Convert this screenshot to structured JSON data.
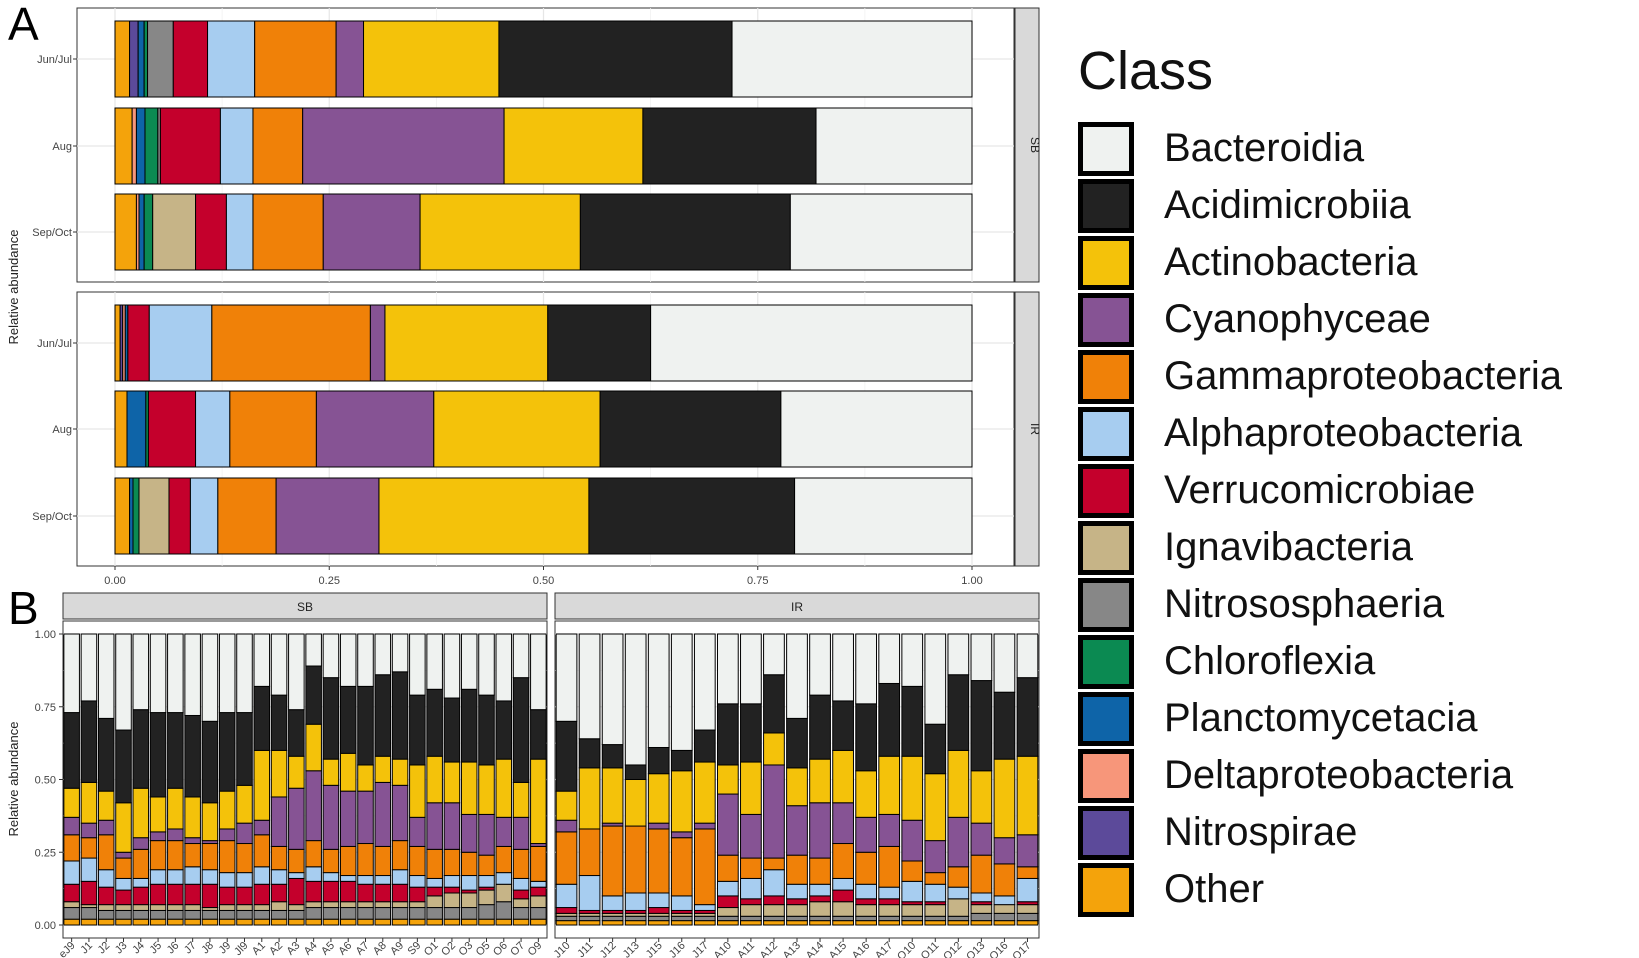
{
  "panel_letters": [
    "A",
    "B"
  ],
  "legend": {
    "title": "Class"
  },
  "classes": [
    {
      "name": "Bacteroidia",
      "color": "#eff2f0"
    },
    {
      "name": "Acidimicrobiia",
      "color": "#222222"
    },
    {
      "name": "Actinobacteria",
      "color": "#f4c20a"
    },
    {
      "name": "Cyanophyceae",
      "color": "#865394"
    },
    {
      "name": "Gammaproteobacteria",
      "color": "#f08108"
    },
    {
      "name": "Alphaproteobacteria",
      "color": "#a7cdf0"
    },
    {
      "name": "Verrucomicrobiae",
      "color": "#c4002c"
    },
    {
      "name": "Ignavibacteria",
      "color": "#c6b487"
    },
    {
      "name": "Nitrososphaeria",
      "color": "#878787"
    },
    {
      "name": "Chloroflexia",
      "color": "#0b8a52"
    },
    {
      "name": "Planctomycetacia",
      "color": "#0e64a8"
    },
    {
      "name": "Deltaproteobacteria",
      "color": "#f7967a"
    },
    {
      "name": "Nitrospirae",
      "color": "#5c4a9a"
    },
    {
      "name": "Other",
      "color": "#f4a30b"
    }
  ],
  "chart_data": [
    {
      "type": "bar",
      "orientation": "horizontal",
      "stacked": true,
      "ylabel": "Relative abundance",
      "xlim": [
        0,
        1
      ],
      "x_ticks": [
        "0.00",
        "0.25",
        "0.50",
        "0.75",
        "1.00"
      ],
      "stack_order": [
        "Other",
        "Nitrospirae",
        "Deltaproteobacteria",
        "Planctomycetacia",
        "Chloroflexia",
        "Nitrososphaeria",
        "Ignavibacteria",
        "Verrucomicrobiae",
        "Alphaproteobacteria",
        "Gammaproteobacteria",
        "Cyanophyceae",
        "Actinobacteria",
        "Acidimicrobiia",
        "Bacteroidia"
      ],
      "facets": [
        {
          "strip": "SB",
          "categories": [
            "Jun/Jul",
            "Aug",
            "Sep/Oct"
          ],
          "segments": [
            [
              0.017,
              0.01,
              0.0,
              0.007,
              0.004,
              0.03,
              0.0,
              0.04,
              0.055,
              0.095,
              0.032,
              0.158,
              0.272,
              0.28
            ],
            [
              0.02,
              0.0,
              0.005,
              0.01,
              0.015,
              0.003,
              0.0,
              0.07,
              0.038,
              0.058,
              0.235,
              0.162,
              0.202,
              0.182
            ],
            [
              0.025,
              0.0,
              0.003,
              0.006,
              0.01,
              0.0,
              0.05,
              0.036,
              0.031,
              0.082,
              0.113,
              0.187,
              0.245,
              0.212
            ]
          ]
        },
        {
          "strip": "IR",
          "categories": [
            "Jun/Jul",
            "Aug",
            "Sep/Oct"
          ],
          "segments": [
            [
              0.006,
              0.003,
              0.003,
              0.003,
              0.0,
              0.0,
              0.0,
              0.025,
              0.073,
              0.185,
              0.017,
              0.19,
              0.12,
              0.375
            ],
            [
              0.014,
              0.0,
              0.0,
              0.022,
              0.003,
              0.0,
              0.0,
              0.055,
              0.04,
              0.101,
              0.137,
              0.194,
              0.211,
              0.223
            ],
            [
              0.017,
              0.0,
              0.0,
              0.004,
              0.007,
              0.0,
              0.035,
              0.025,
              0.032,
              0.068,
              0.12,
              0.245,
              0.24,
              0.207
            ]
          ]
        }
      ]
    },
    {
      "type": "bar",
      "stacked": true,
      "ylabel": "Relative abundance",
      "ylim": [
        0,
        1
      ],
      "y_ticks": [
        "0.00",
        "0.25",
        "0.50",
        "0.75",
        "1.00"
      ],
      "stack_order": [
        "Other",
        "Nitrospirae",
        "Deltaproteobacteria",
        "Planctomycetacia",
        "Chloroflexia",
        "Nitrososphaeria",
        "Ignavibacteria",
        "Verrucomicrobiae",
        "Alphaproteobacteria",
        "Gammaproteobacteria",
        "Cyanophyceae",
        "Actinobacteria",
        "Acidimicrobiia",
        "Bacteroidia"
      ],
      "facets": [
        {
          "strip": "SB",
          "categories": [
            "eJ9",
            "J1",
            "J2",
            "J3",
            "J4",
            "J5",
            "J6",
            "J7",
            "J8",
            "J9",
            "Jl9",
            "A1",
            "A2",
            "A3",
            "A4",
            "A5",
            "A6",
            "A7",
            "A8",
            "A9",
            "S9",
            "O1",
            "O2",
            "O3",
            "O5",
            "O6",
            "O7",
            "O9"
          ],
          "acidimicrobiia_top": [
            0.73,
            0.77,
            0.71,
            0.67,
            0.74,
            0.73,
            0.73,
            0.72,
            0.7,
            0.73,
            0.73,
            0.82,
            0.79,
            0.74,
            0.89,
            0.85,
            0.82,
            0.82,
            0.86,
            0.87,
            0.79,
            0.81,
            0.78,
            0.81,
            0.79,
            0.77,
            0.85,
            0.74
          ],
          "actinobacteria_top": [
            0.47,
            0.49,
            0.46,
            0.42,
            0.47,
            0.44,
            0.47,
            0.44,
            0.42,
            0.46,
            0.48,
            0.6,
            0.6,
            0.58,
            0.69,
            0.57,
            0.59,
            0.55,
            0.58,
            0.57,
            0.55,
            0.58,
            0.56,
            0.56,
            0.55,
            0.57,
            0.49,
            0.57
          ],
          "cyanophyceae_top": [
            0.37,
            0.35,
            0.36,
            0.25,
            0.3,
            0.32,
            0.33,
            0.3,
            0.29,
            0.33,
            0.35,
            0.36,
            0.44,
            0.47,
            0.53,
            0.48,
            0.46,
            0.46,
            0.49,
            0.48,
            0.37,
            0.42,
            0.42,
            0.38,
            0.38,
            0.37,
            0.37,
            0.28
          ],
          "gammaproteobacteria_top": [
            0.31,
            0.3,
            0.31,
            0.23,
            0.26,
            0.29,
            0.29,
            0.28,
            0.28,
            0.29,
            0.28,
            0.31,
            0.27,
            0.26,
            0.29,
            0.26,
            0.27,
            0.28,
            0.27,
            0.29,
            0.27,
            0.26,
            0.26,
            0.25,
            0.24,
            0.27,
            0.26,
            0.27
          ],
          "alphaproteobacteria_top": [
            0.22,
            0.23,
            0.19,
            0.16,
            0.16,
            0.19,
            0.19,
            0.2,
            0.19,
            0.18,
            0.18,
            0.2,
            0.19,
            0.18,
            0.2,
            0.18,
            0.17,
            0.17,
            0.17,
            0.19,
            0.17,
            0.16,
            0.17,
            0.17,
            0.17,
            0.18,
            0.16,
            0.15
          ],
          "verrucomicrobiae_top": [
            0.14,
            0.15,
            0.13,
            0.12,
            0.13,
            0.14,
            0.14,
            0.14,
            0.14,
            0.13,
            0.13,
            0.14,
            0.14,
            0.16,
            0.15,
            0.15,
            0.15,
            0.14,
            0.14,
            0.14,
            0.13,
            0.13,
            0.13,
            0.12,
            0.13,
            0.13,
            0.12,
            0.13
          ],
          "ignavibacteria_top": [
            0.08,
            0.07,
            0.07,
            0.07,
            0.07,
            0.07,
            0.07,
            0.07,
            0.06,
            0.07,
            0.07,
            0.07,
            0.08,
            0.07,
            0.08,
            0.08,
            0.08,
            0.08,
            0.08,
            0.08,
            0.08,
            0.1,
            0.11,
            0.11,
            0.12,
            0.14,
            0.09,
            0.1
          ],
          "nitrososphaeria_top": [
            0.06,
            0.06,
            0.05,
            0.05,
            0.05,
            0.05,
            0.05,
            0.05,
            0.05,
            0.05,
            0.05,
            0.05,
            0.05,
            0.05,
            0.06,
            0.06,
            0.06,
            0.06,
            0.06,
            0.06,
            0.06,
            0.06,
            0.06,
            0.06,
            0.07,
            0.08,
            0.06,
            0.06
          ],
          "other_top": [
            0.02,
            0.02,
            0.02,
            0.02,
            0.02,
            0.02,
            0.02,
            0.02,
            0.02,
            0.02,
            0.02,
            0.02,
            0.02,
            0.02,
            0.02,
            0.02,
            0.02,
            0.02,
            0.02,
            0.02,
            0.02,
            0.02,
            0.02,
            0.02,
            0.02,
            0.02,
            0.02,
            0.02
          ]
        },
        {
          "strip": "IR",
          "categories": [
            "J10",
            "J11",
            "J12",
            "J13",
            "J15",
            "J16",
            "J17",
            "A10",
            "A11",
            "A12",
            "A13",
            "A14",
            "A15",
            "A16",
            "A17",
            "O10",
            "O11",
            "O12",
            "O13",
            "O16",
            "O17"
          ],
          "acidimicrobiia_top": [
            0.7,
            0.64,
            0.62,
            0.55,
            0.61,
            0.6,
            0.67,
            0.76,
            0.76,
            0.86,
            0.71,
            0.79,
            0.77,
            0.76,
            0.83,
            0.82,
            0.69,
            0.86,
            0.84,
            0.8,
            0.85
          ],
          "actinobacteria_top": [
            0.46,
            0.54,
            0.54,
            0.5,
            0.52,
            0.53,
            0.56,
            0.55,
            0.56,
            0.66,
            0.54,
            0.57,
            0.6,
            0.53,
            0.58,
            0.58,
            0.52,
            0.6,
            0.53,
            0.57,
            0.58
          ],
          "cyanophyceae_top": [
            0.36,
            0.33,
            0.35,
            0.34,
            0.35,
            0.32,
            0.35,
            0.45,
            0.38,
            0.55,
            0.41,
            0.42,
            0.42,
            0.37,
            0.38,
            0.36,
            0.29,
            0.37,
            0.35,
            0.3,
            0.31
          ],
          "gammaproteobacteria_top": [
            0.32,
            0.33,
            0.34,
            0.34,
            0.33,
            0.3,
            0.33,
            0.24,
            0.23,
            0.23,
            0.24,
            0.23,
            0.28,
            0.25,
            0.27,
            0.22,
            0.18,
            0.2,
            0.24,
            0.21,
            0.2
          ],
          "alphaproteobacteria_top": [
            0.14,
            0.17,
            0.1,
            0.11,
            0.11,
            0.1,
            0.07,
            0.15,
            0.16,
            0.19,
            0.14,
            0.14,
            0.16,
            0.14,
            0.13,
            0.15,
            0.14,
            0.13,
            0.11,
            0.1,
            0.16
          ],
          "verrucomicrobiae_top": [
            0.06,
            0.05,
            0.05,
            0.05,
            0.06,
            0.05,
            0.05,
            0.1,
            0.09,
            0.1,
            0.09,
            0.1,
            0.12,
            0.09,
            0.09,
            0.08,
            0.08,
            0.08,
            0.08,
            0.07,
            0.08
          ],
          "ignavibacteria_top": [
            0.04,
            0.04,
            0.04,
            0.04,
            0.04,
            0.04,
            0.04,
            0.06,
            0.07,
            0.07,
            0.07,
            0.08,
            0.08,
            0.07,
            0.07,
            0.07,
            0.07,
            0.09,
            0.07,
            0.07,
            0.07
          ],
          "nitrososphaeria_top": [
            0.03,
            0.03,
            0.03,
            0.03,
            0.03,
            0.03,
            0.03,
            0.03,
            0.03,
            0.03,
            0.03,
            0.03,
            0.03,
            0.03,
            0.03,
            0.03,
            0.03,
            0.03,
            0.04,
            0.04,
            0.04
          ],
          "other_top": [
            0.015,
            0.015,
            0.015,
            0.015,
            0.015,
            0.015,
            0.015,
            0.015,
            0.015,
            0.015,
            0.015,
            0.015,
            0.015,
            0.015,
            0.015,
            0.015,
            0.015,
            0.015,
            0.015,
            0.015,
            0.015
          ]
        }
      ]
    }
  ]
}
